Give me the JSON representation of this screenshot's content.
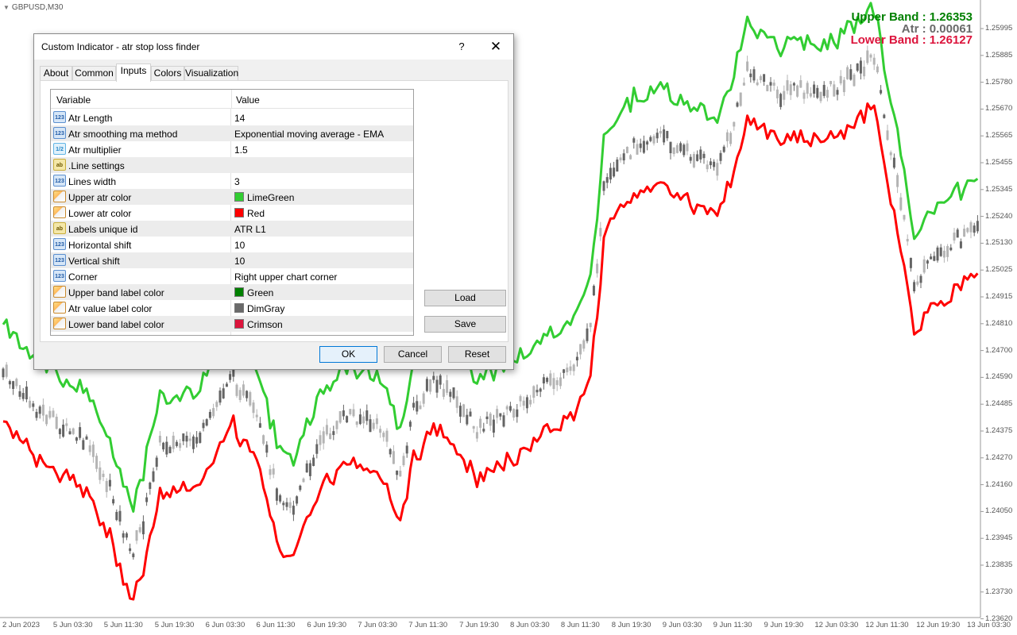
{
  "chart": {
    "symbol": "GBPUSD,M30",
    "labels": {
      "upper": "Upper Band : 1.26353",
      "atr": "Atr : 0.00061",
      "lower": "Lower Band : 1.26127"
    },
    "colors": {
      "upper_band": "#32CD32",
      "lower_band": "#FF0000",
      "bull_candle": "#b4b4b4",
      "bear_candle": "#646464",
      "grid": "#f2f2f2"
    },
    "price_ticks": [
      "1.25995",
      "1.25885",
      "1.25780",
      "1.25670",
      "1.25565",
      "1.25455",
      "1.25345",
      "1.25240",
      "1.25130",
      "1.25025",
      "1.24915",
      "1.24810",
      "1.24700",
      "1.24590",
      "1.24485",
      "1.24375",
      "1.24270",
      "1.24160",
      "1.24050",
      "1.23945",
      "1.23835",
      "1.23730",
      "1.23620"
    ],
    "time_ticks": [
      "2 Jun 2023",
      "5 Jun 03:30",
      "5 Jun 11:30",
      "5 Jun 19:30",
      "6 Jun 03:30",
      "6 Jun 11:30",
      "6 Jun 19:30",
      "7 Jun 03:30",
      "7 Jun 11:30",
      "7 Jun 19:30",
      "8 Jun 03:30",
      "8 Jun 11:30",
      "8 Jun 19:30",
      "9 Jun 03:30",
      "9 Jun 11:30",
      "9 Jun 19:30",
      "12 Jun 03:30",
      "12 Jun 11:30",
      "12 Jun 19:30",
      "13 Jun 03:30"
    ]
  },
  "dialog": {
    "title": "Custom Indicator - atr stop loss finder",
    "help": "?",
    "close": "✕",
    "tabs": [
      "About",
      "Common",
      "Inputs",
      "Colors",
      "Visualization"
    ],
    "active_tab": "Inputs",
    "grid": {
      "col_variable": "Variable",
      "col_value": "Value",
      "rows": [
        {
          "type": "int",
          "icon": "123",
          "variable": "Atr Length",
          "value": "14"
        },
        {
          "type": "int",
          "icon": "123",
          "variable": "Atr smoothing ma method",
          "value": "Exponential moving average - EMA"
        },
        {
          "type": "dbl",
          "icon": "1/2",
          "variable": "Atr multiplier",
          "value": "1.5"
        },
        {
          "type": "str",
          "icon": "ab",
          "variable": ".Line settings",
          "value": ""
        },
        {
          "type": "int",
          "icon": "123",
          "variable": "Lines width",
          "value": "3"
        },
        {
          "type": "clr",
          "icon": "",
          "variable": "Upper atr color",
          "value": "LimeGreen",
          "swatch": "#32CD32"
        },
        {
          "type": "clr",
          "icon": "",
          "variable": "Lower atr color",
          "value": "Red",
          "swatch": "#FF0000"
        },
        {
          "type": "str",
          "icon": "ab",
          "variable": "Labels unique id",
          "value": "ATR L1"
        },
        {
          "type": "int",
          "icon": "123",
          "variable": "Horizontal shift",
          "value": "10"
        },
        {
          "type": "int",
          "icon": "123",
          "variable": "Vertical shift",
          "value": "10"
        },
        {
          "type": "int",
          "icon": "123",
          "variable": "Corner",
          "value": "Right upper chart corner"
        },
        {
          "type": "clr",
          "icon": "",
          "variable": "Upper band label color",
          "value": "Green",
          "swatch": "#008000"
        },
        {
          "type": "clr",
          "icon": "",
          "variable": "Atr value label color",
          "value": "DimGray",
          "swatch": "#696969"
        },
        {
          "type": "clr",
          "icon": "",
          "variable": "Lower band label color",
          "value": "Crimson",
          "swatch": "#DC143C"
        }
      ]
    },
    "buttons": {
      "load": "Load",
      "save": "Save",
      "ok": "OK",
      "cancel": "Cancel",
      "reset": "Reset"
    }
  }
}
